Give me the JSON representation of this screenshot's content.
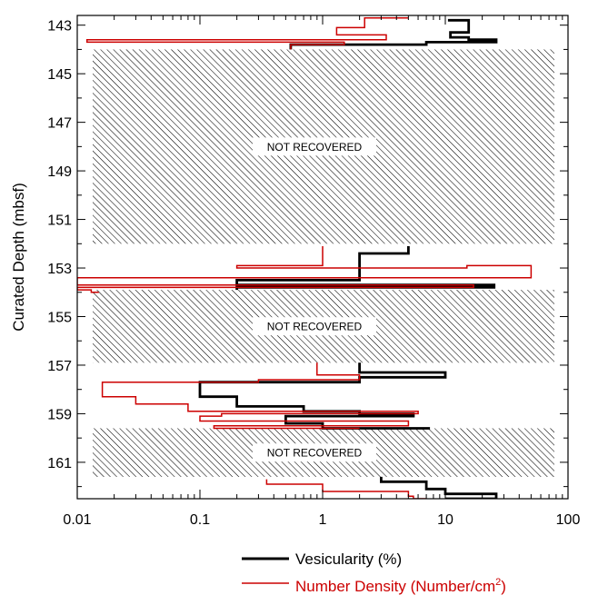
{
  "chart_data": {
    "type": "line",
    "ylabel": "Curated Depth (mbsf)",
    "xscale": "log",
    "xlim": [
      0.01,
      100
    ],
    "ylim": [
      162.5,
      142.6
    ],
    "x_ticks": [
      "0.01",
      "0.1",
      "1",
      "10",
      "100"
    ],
    "y_ticks": [
      "143",
      "145",
      "147",
      "149",
      "151",
      "153",
      "155",
      "157",
      "159",
      "161"
    ],
    "not_recovered": [
      {
        "label": "NOT RECOVERED",
        "top": 144.0,
        "bottom": 152.0
      },
      {
        "label": "NOT RECOVERED",
        "top": 153.9,
        "bottom": 156.9
      },
      {
        "label": "NOT RECOVERED",
        "top": 159.6,
        "bottom": 161.6
      }
    ],
    "series": [
      {
        "name": "Vesicularity (%)",
        "color": "#000000",
        "points": [
          [
            10.5,
            142.8
          ],
          [
            15.5,
            142.8
          ],
          [
            15.5,
            143.3
          ],
          [
            11,
            143.3
          ],
          [
            11,
            143.5
          ],
          [
            15.5,
            143.5
          ],
          [
            15.5,
            143.6
          ],
          [
            26,
            143.6
          ],
          [
            26,
            143.7
          ],
          [
            7,
            143.7
          ],
          [
            7,
            143.8
          ],
          [
            0.55,
            143.8
          ],
          [
            0.55,
            144.0
          ]
        ]
      },
      {
        "name": "Vesicularity (%)",
        "color": "#000000",
        "points": [
          [
            5,
            152.1
          ],
          [
            5,
            152.4
          ],
          [
            2,
            152.4
          ],
          [
            2,
            153.5
          ],
          [
            0.2,
            153.5
          ],
          [
            0.2,
            153.7
          ],
          [
            25,
            153.7
          ],
          [
            25,
            153.8
          ],
          [
            0.2,
            153.8
          ],
          [
            0.2,
            153.9
          ]
        ]
      },
      {
        "name": "Vesicularity (%)",
        "color": "#000000",
        "points": [
          [
            2,
            156.9
          ],
          [
            2,
            157.3
          ],
          [
            10,
            157.3
          ],
          [
            10,
            157.5
          ],
          [
            2,
            157.5
          ],
          [
            2,
            157.7
          ],
          [
            0.1,
            157.7
          ],
          [
            0.1,
            158.3
          ],
          [
            0.2,
            158.3
          ],
          [
            0.2,
            158.7
          ],
          [
            0.7,
            158.7
          ],
          [
            0.7,
            158.9
          ],
          [
            2,
            158.9
          ],
          [
            2,
            159.0
          ],
          [
            5.5,
            159.0
          ],
          [
            5.5,
            159.1
          ],
          [
            0.5,
            159.1
          ],
          [
            0.5,
            159.4
          ],
          [
            1,
            159.4
          ],
          [
            1,
            159.6
          ],
          [
            7.5,
            159.6
          ]
        ]
      },
      {
        "name": "Vesicularity (%)",
        "color": "#000000",
        "points": [
          [
            3,
            161.6
          ],
          [
            3,
            161.8
          ],
          [
            7,
            161.8
          ],
          [
            7,
            162.1
          ],
          [
            10,
            162.1
          ],
          [
            10,
            162.3
          ],
          [
            26,
            162.3
          ],
          [
            26,
            162.5
          ],
          [
            10,
            162.5
          ]
        ]
      },
      {
        "name": "Number Density (Number/cm2)",
        "color": "#cc0000",
        "points": [
          [
            5,
            142.7
          ],
          [
            2.2,
            142.7
          ],
          [
            2.2,
            143.1
          ],
          [
            1.3,
            143.1
          ],
          [
            1.3,
            143.4
          ],
          [
            3.3,
            143.4
          ],
          [
            3.3,
            143.6
          ],
          [
            0.012,
            143.6
          ],
          [
            0.012,
            143.7
          ],
          [
            1.5,
            143.7
          ],
          [
            1.5,
            143.8
          ],
          [
            0.55,
            143.8
          ],
          [
            0.55,
            144.0
          ]
        ]
      },
      {
        "name": "Number Density (Number/cm2)",
        "color": "#cc0000",
        "points": [
          [
            1,
            152.1
          ],
          [
            1,
            152.9
          ],
          [
            0.2,
            152.9
          ],
          [
            0.2,
            153.0
          ],
          [
            15,
            153.0
          ],
          [
            15,
            152.9
          ],
          [
            50,
            152.9
          ],
          [
            50,
            153.4
          ],
          [
            0.01,
            153.4
          ],
          [
            0.01,
            153.7
          ],
          [
            17,
            153.7
          ],
          [
            17,
            153.8
          ],
          [
            0.01,
            153.8
          ],
          [
            0.01,
            153.9
          ],
          [
            0.013,
            153.9
          ],
          [
            0.013,
            154.0
          ],
          [
            0.015,
            154.0
          ]
        ]
      },
      {
        "name": "Number Density (Number/cm2)",
        "color": "#cc0000",
        "points": [
          [
            0.9,
            156.9
          ],
          [
            0.9,
            157.4
          ],
          [
            2,
            157.4
          ],
          [
            2,
            157.6
          ],
          [
            0.3,
            157.6
          ],
          [
            0.3,
            157.7
          ],
          [
            0.016,
            157.7
          ],
          [
            0.016,
            158.3
          ],
          [
            0.03,
            158.3
          ],
          [
            0.03,
            158.6
          ],
          [
            0.08,
            158.6
          ],
          [
            0.08,
            158.9
          ],
          [
            6,
            158.9
          ],
          [
            6,
            159.0
          ],
          [
            0.15,
            159.0
          ],
          [
            0.15,
            159.1
          ],
          [
            0.1,
            159.1
          ],
          [
            0.1,
            159.3
          ],
          [
            5,
            159.3
          ],
          [
            5,
            159.5
          ],
          [
            0.13,
            159.5
          ],
          [
            0.13,
            159.6
          ],
          [
            2,
            159.6
          ]
        ]
      },
      {
        "name": "Number Density (Number/cm2)",
        "color": "#cc0000",
        "points": [
          [
            0.35,
            161.7
          ],
          [
            0.35,
            161.9
          ],
          [
            1,
            161.9
          ],
          [
            1,
            162.2
          ],
          [
            5,
            162.2
          ],
          [
            5,
            162.4
          ],
          [
            5.5,
            162.4
          ],
          [
            5.5,
            162.5
          ],
          [
            7,
            162.5
          ]
        ]
      }
    ],
    "legend": {
      "position": "bottom-center",
      "entries": [
        {
          "label": "Vesicularity (%)",
          "color": "#000000"
        },
        {
          "label_main": "Number Density (Number/cm",
          "label_sup": "2",
          "label_end": ")",
          "color": "#cc0000"
        }
      ]
    },
    "grid": false
  }
}
